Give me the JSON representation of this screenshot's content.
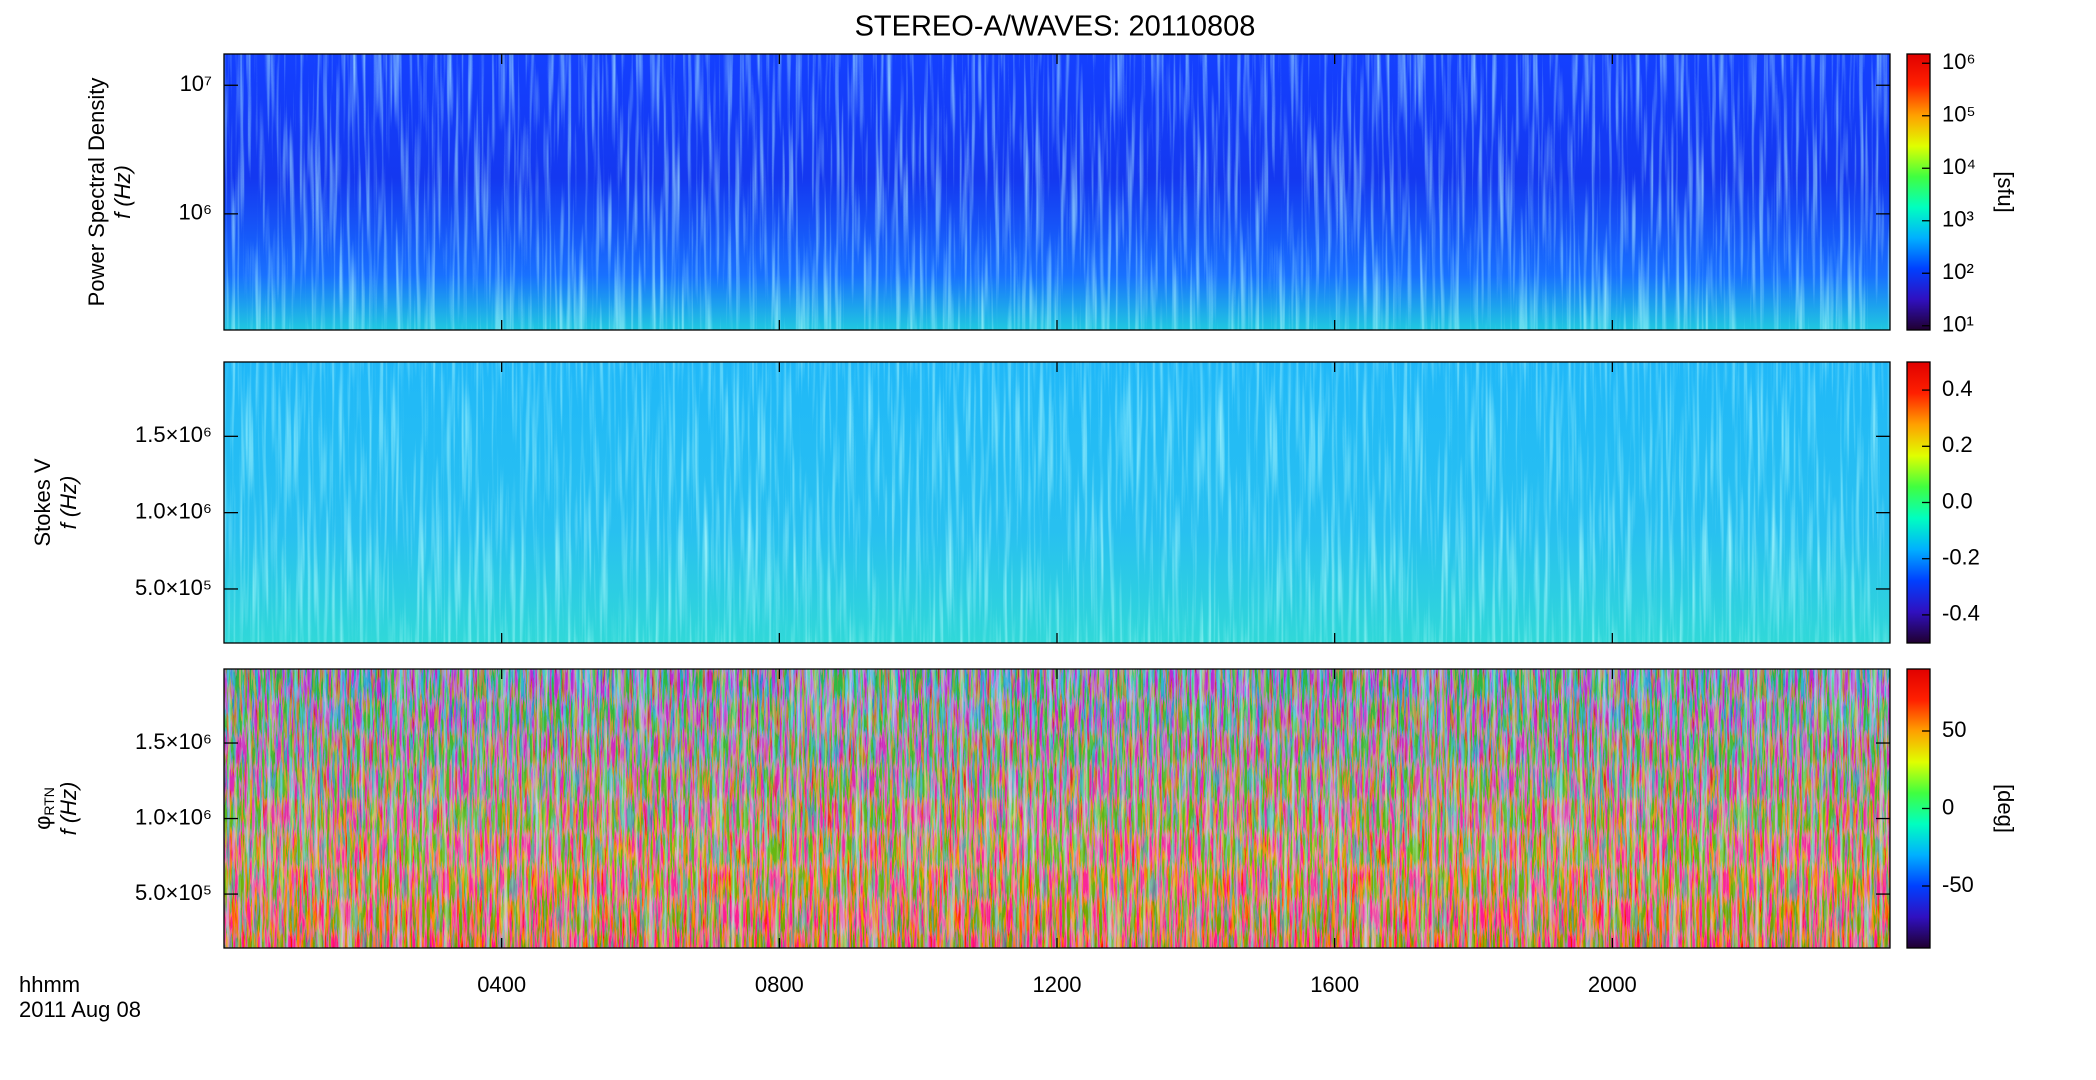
{
  "chart_data": [
    {
      "type": "spectrogram",
      "title": "STEREO-A/WAVES: 20110808",
      "ylabel": [
        "Power Spectral Density",
        "f (Hz)"
      ],
      "ylog": true,
      "xlim": [
        0,
        24
      ],
      "ylim": [
        125000,
        17500000
      ],
      "yticks": [
        {
          "value": 1000000,
          "label": "10⁶"
        },
        {
          "value": 10000000,
          "label": "10⁷"
        }
      ],
      "colorbar": {
        "zlog": true,
        "zlim": [
          8.3,
          1500000
        ],
        "label": "[sfu]",
        "zticks": [
          {
            "value": 10,
            "label": "10¹"
          },
          {
            "value": 100,
            "label": "10²"
          },
          {
            "value": 1000,
            "label": "10³"
          },
          {
            "value": 10000,
            "label": "10⁴"
          },
          {
            "value": 100000,
            "label": "10⁵"
          },
          {
            "value": 1000000,
            "label": "10⁶"
          }
        ]
      }
    },
    {
      "type": "spectrogram",
      "ylabel": [
        "Stokes V",
        "f (Hz)"
      ],
      "ylog": false,
      "xlim": [
        0,
        24
      ],
      "ylim": [
        146000,
        1987000
      ],
      "yticks": [
        {
          "value": 500000,
          "label": "5.0×10⁵"
        },
        {
          "value": 1000000,
          "label": "1.0×10⁶"
        },
        {
          "value": 1500000,
          "label": "1.5×10⁶"
        }
      ],
      "colorbar": {
        "zlog": false,
        "zlim": [
          -0.5,
          0.5
        ],
        "zticks": [
          {
            "value": -0.4,
            "label": "-0.4"
          },
          {
            "value": -0.2,
            "label": "-0.2"
          },
          {
            "value": 0,
            "label": "0.0"
          },
          {
            "value": 0.2,
            "label": "0.2"
          },
          {
            "value": 0.4,
            "label": "0.4"
          }
        ]
      }
    },
    {
      "type": "spectrogram",
      "ylabel": [
        "φRTN",
        "f (Hz)"
      ],
      "ylog": false,
      "xlim": [
        0,
        24
      ],
      "ylim": [
        143000,
        1990000
      ],
      "yticks": [
        {
          "value": 500000,
          "label": "5.0×10⁵"
        },
        {
          "value": 1000000,
          "label": "1.0×10⁶"
        },
        {
          "value": 1500000,
          "label": "1.5×10⁶"
        }
      ],
      "xticks": [
        {
          "value": 4,
          "label": "0400"
        },
        {
          "value": 8,
          "label": "0800"
        },
        {
          "value": 12,
          "label": "1200"
        },
        {
          "value": 16,
          "label": "1600"
        },
        {
          "value": 20,
          "label": "2000"
        }
      ],
      "xlabel": "hhmm",
      "date": "2011 Aug 08",
      "colorbar": {
        "zlog": false,
        "zlim": [
          -90,
          90
        ],
        "label": "[deg]",
        "zticks": [
          -50,
          0,
          50
        ]
      }
    }
  ],
  "colormap": [
    "#200030",
    "#3010c0",
    "#0040ff",
    "#00b0ff",
    "#00ffc0",
    "#40ff40",
    "#e0ff00",
    "#ffa000",
    "#ff2000",
    "#e00000"
  ]
}
